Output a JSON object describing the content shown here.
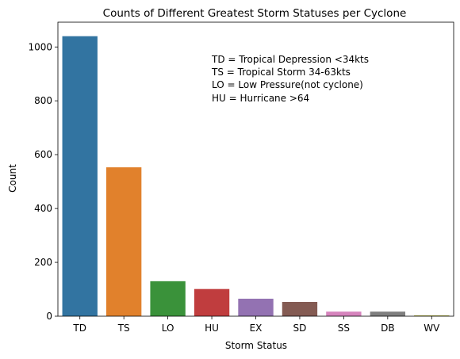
{
  "chart_data": {
    "type": "bar",
    "title": "Counts of Different Greatest Storm Statuses per Cyclone",
    "xlabel": "Storm Status",
    "ylabel": "Count",
    "categories": [
      "TD",
      "TS",
      "LO",
      "HU",
      "EX",
      "SD",
      "SS",
      "DB",
      "WV"
    ],
    "values": [
      1040,
      553,
      130,
      101,
      65,
      53,
      17,
      17,
      3
    ],
    "colors": [
      "#3274a1",
      "#e1812c",
      "#3a923a",
      "#c03d3e",
      "#9372b2",
      "#845b53",
      "#d684bd",
      "#7f7f7f",
      "#a9aa35"
    ],
    "ylim": [
      0,
      1092
    ],
    "yticks": [
      0,
      200,
      400,
      600,
      800,
      1000
    ],
    "grid": false,
    "annotation": [
      "TD = Tropical Depression <34kts",
      "TS = Tropical Storm 34-63kts",
      "LO = Low Pressure(not cyclone)",
      "HU = Hurricane >64"
    ]
  }
}
